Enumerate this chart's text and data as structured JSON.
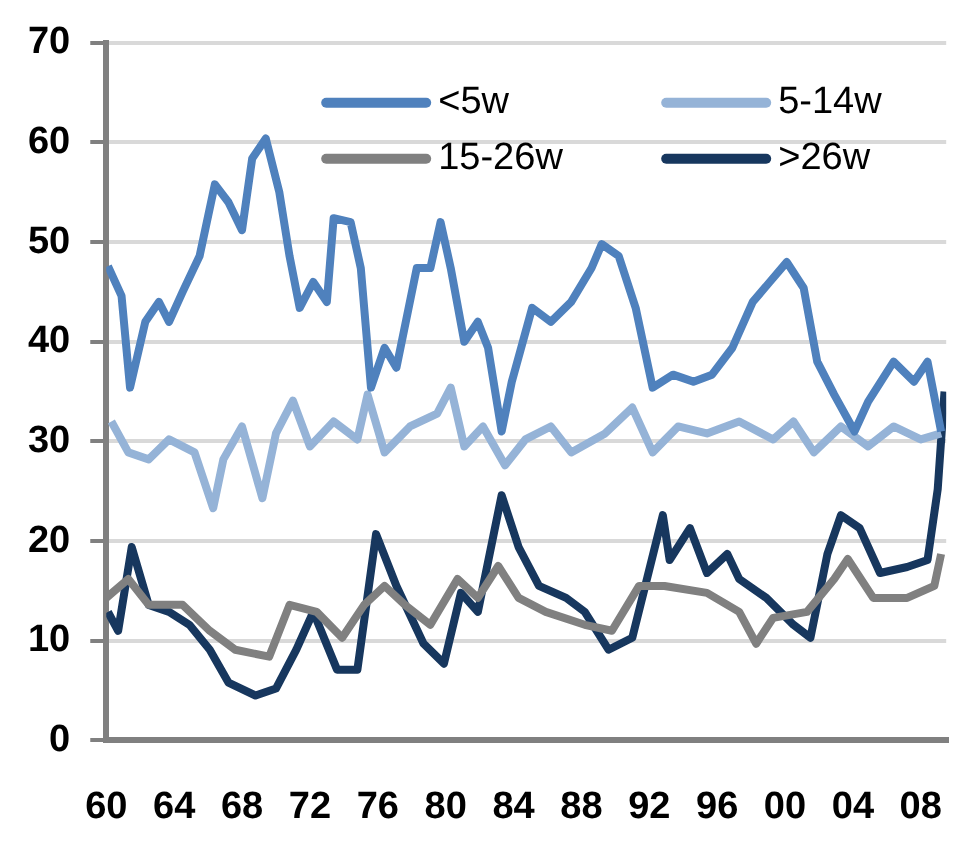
{
  "chart_data": {
    "type": "line",
    "xlim": [
      1960,
      2009.5
    ],
    "ylim": [
      0,
      70
    ],
    "yticks": [
      0,
      10,
      20,
      30,
      40,
      50,
      60,
      70
    ],
    "xticks": [
      {
        "value": 1960,
        "label": "60"
      },
      {
        "value": 1964,
        "label": "64"
      },
      {
        "value": 1968,
        "label": "68"
      },
      {
        "value": 1972,
        "label": "72"
      },
      {
        "value": 1976,
        "label": "76"
      },
      {
        "value": 1980,
        "label": "80"
      },
      {
        "value": 1984,
        "label": "84"
      },
      {
        "value": 1988,
        "label": "88"
      },
      {
        "value": 1992,
        "label": "92"
      },
      {
        "value": 1996,
        "label": "96"
      },
      {
        "value": 2000,
        "label": "00"
      },
      {
        "value": 2004,
        "label": "04"
      },
      {
        "value": 2008,
        "label": "08"
      }
    ],
    "grid": "y",
    "legend": "top right",
    "marker": "none",
    "line_style": "solid",
    "series": [
      {
        "name": "<5w",
        "color": "#4f81bd",
        "x": [
          1960.1,
          1960.9,
          1961.4,
          1962.3,
          1963.1,
          1963.7,
          1964.5,
          1965.5,
          1966.4,
          1967.2,
          1968,
          1968.6,
          1969.4,
          1970.2,
          1970.8,
          1971.4,
          1972.2,
          1973,
          1973.4,
          1974.4,
          1975,
          1975.6,
          1976.4,
          1977.1,
          1978.3,
          1979.1,
          1979.7,
          1980.3,
          1981.1,
          1981.9,
          1982.5,
          1983.3,
          1983.9,
          1985.1,
          1986.2,
          1987.4,
          1988.6,
          1989.2,
          1990.2,
          1991.2,
          1992.2,
          1993.4,
          1994.6,
          1995.7,
          1996.9,
          1998.1,
          1999.1,
          2000.1,
          2001.1,
          2001.9,
          2002.9,
          2004.1,
          2004.9,
          2006.4,
          2007.6,
          2008.4,
          2009.2
        ],
        "values": [
          47.6,
          44.6,
          35.4,
          42,
          44,
          42,
          45,
          48.6,
          55.8,
          54,
          51.2,
          58.4,
          60.4,
          55,
          48.6,
          43.4,
          46,
          44,
          52.4,
          52,
          47.4,
          35.4,
          39.4,
          37.4,
          47.4,
          47.4,
          52,
          47.4,
          40,
          42,
          39.4,
          31,
          36,
          43.4,
          42,
          44,
          47.4,
          49.8,
          48.6,
          43.4,
          35.4,
          36.7,
          36,
          36.7,
          39.4,
          44,
          46,
          48,
          45.4,
          38,
          34.7,
          31,
          34,
          38,
          36,
          38,
          31
        ]
      },
      {
        "name": "5-14w",
        "color": "#95b3d7",
        "x": [
          1960.3,
          1961.3,
          1962.5,
          1963.7,
          1965.2,
          1966.3,
          1966.9,
          1968,
          1969.2,
          1970,
          1971,
          1972,
          1973.4,
          1974.8,
          1975.4,
          1976.4,
          1977.9,
          1979.5,
          1980.3,
          1981.1,
          1982.2,
          1983.5,
          1984.7,
          1986.2,
          1987.4,
          1989.4,
          1991,
          1992.2,
          1993.7,
          1995.4,
          1997.3,
          1999.3,
          2000.5,
          2001.7,
          2003.3,
          2004.9,
          2006.4,
          2008,
          2009.2
        ],
        "values": [
          32,
          28.9,
          28.2,
          30.2,
          28.9,
          23.3,
          28.2,
          31.5,
          24.3,
          30.8,
          34.1,
          29.5,
          32,
          30.2,
          34.7,
          28.9,
          31.5,
          32.8,
          35.4,
          29.5,
          31.5,
          27.6,
          30.2,
          31.5,
          28.9,
          30.8,
          33.4,
          28.9,
          31.5,
          30.8,
          32,
          30.2,
          32,
          28.9,
          31.5,
          29.5,
          31.5,
          30.2,
          30.8
        ]
      },
      {
        "name": "15-26w",
        "color": "#808080",
        "x": [
          1960,
          1961.3,
          1962.5,
          1964.5,
          1966.1,
          1967.6,
          1969.6,
          1970.8,
          1972.4,
          1973.9,
          1975.2,
          1976.4,
          1977.6,
          1979.1,
          1980.7,
          1981.9,
          1983.1,
          1984.3,
          1985.9,
          1988.2,
          1989.8,
          1991.4,
          1992.9,
          1995.4,
          1997.3,
          1998.3,
          1999.3,
          2001.3,
          2002.9,
          2003.7,
          2005.2,
          2007.2,
          2008.8,
          2009.2
        ],
        "values": [
          14.3,
          16.2,
          13.6,
          13.6,
          11,
          9.1,
          8.4,
          13.6,
          12.9,
          10.3,
          13.6,
          15.5,
          13.6,
          11.6,
          16.2,
          14.3,
          17.5,
          14.3,
          12.9,
          11.6,
          11,
          15.5,
          15.5,
          14.8,
          12.9,
          9.7,
          12.3,
          12.9,
          16.2,
          18.2,
          14.3,
          14.3,
          15.5,
          18.7
        ]
      },
      {
        "name": ">26w",
        "color": "#17375e",
        "x": [
          1960.1,
          1960.7,
          1961.5,
          1962.5,
          1963.7,
          1964.9,
          1966.1,
          1967.2,
          1968.8,
          1970,
          1971.2,
          1972.2,
          1973.6,
          1974.8,
          1975.9,
          1977.1,
          1978.7,
          1979.9,
          1980.9,
          1981.9,
          1983.3,
          1984.3,
          1985.5,
          1987.1,
          1988.2,
          1989.6,
          1991,
          1992.8,
          1993.2,
          1994.4,
          1995.4,
          1996.6,
          1997.3,
          1998.9,
          2000.5,
          2001.5,
          2002.5,
          2003.3,
          2004.4,
          2005.6,
          2007.2,
          2008.4,
          2009,
          2009.4
        ],
        "values": [
          12.9,
          11,
          19.4,
          13.6,
          12.9,
          11.6,
          9.1,
          5.8,
          4.5,
          5.2,
          9.1,
          12.9,
          7.1,
          7.1,
          20.7,
          15.5,
          9.7,
          7.7,
          14.8,
          12.9,
          24.6,
          19.4,
          15.5,
          14.3,
          12.9,
          9.1,
          10.3,
          22.6,
          18.1,
          21.3,
          16.8,
          18.7,
          16.2,
          14.3,
          11.6,
          10.3,
          18.7,
          22.6,
          21.3,
          16.8,
          17.4,
          18.1,
          25.2,
          35
        ]
      }
    ]
  }
}
